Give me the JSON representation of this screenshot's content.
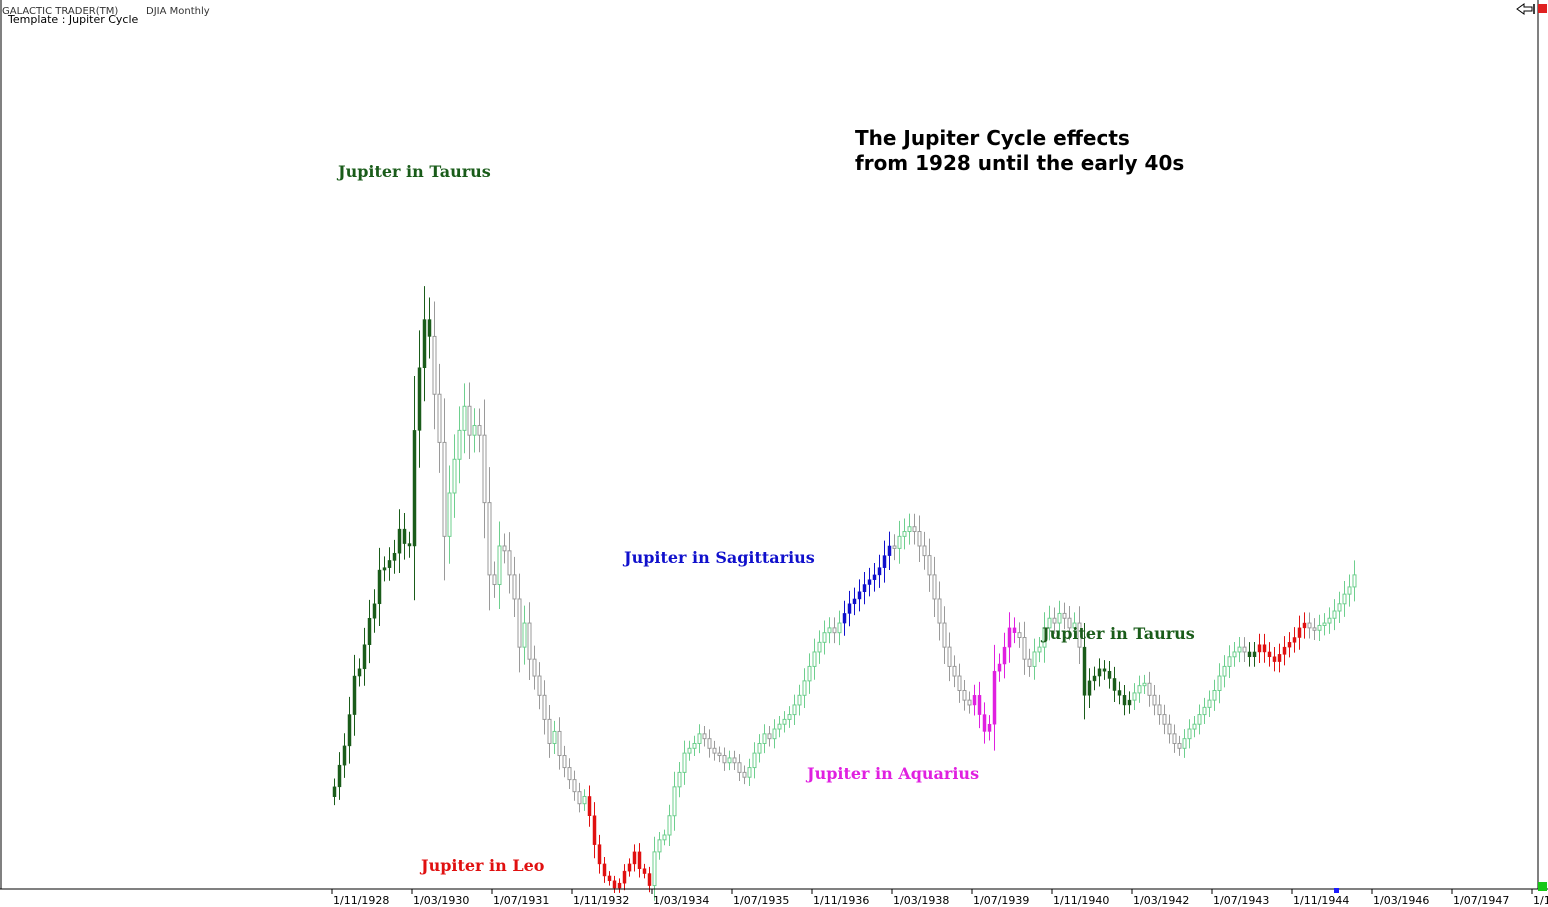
{
  "header": {
    "app_title": "GALACTIC TRADER(TM)",
    "symbol": "DJIA Monthly",
    "template": "Template : Jupiter Cycle"
  },
  "note": "The Jupiter Cycle effects from 1928 until the early 40s",
  "labels": [
    {
      "key": "taurus-1",
      "text": "Jupiter in Taurus",
      "color": "#1a5c1a"
    },
    {
      "key": "leo",
      "text": "Jupiter in Leo",
      "color": "#e01010"
    },
    {
      "key": "sagittarius",
      "text": "Jupiter in Sagittarius",
      "color": "#1010cc"
    },
    {
      "key": "aquarius",
      "text": "Jupiter in Aquarius",
      "color": "#e020e0"
    },
    {
      "key": "taurus-2",
      "text": "Jupiter in Taurus",
      "color": "#1a5c1a"
    }
  ],
  "icons": {
    "scroll": "scroll-end-icon",
    "close": "close-icon",
    "resize": "resize-grip-icon",
    "marker": "current-bar-marker-icon"
  },
  "chart_data": {
    "type": "candlestick",
    "x_ticks": [
      "1/11/1928",
      "1/03/1930",
      "1/07/1931",
      "1/11/1932",
      "1/03/1934",
      "1/07/1935",
      "1/11/1936",
      "1/03/1938",
      "1/07/1939",
      "1/11/1940",
      "1/03/1942",
      "1/07/1943",
      "1/11/1944",
      "1/03/1946",
      "1/07/1947",
      "1/1"
    ],
    "colors": {
      "up": "#6ecf8e",
      "down": "#9a9a9a",
      "taurus": "#1a5c1a",
      "leo": "#e01010",
      "sagittarius": "#1010cc",
      "aquarius": "#e020e0"
    },
    "segments": [
      {
        "start": "1928-01",
        "phase": "taurus",
        "closes": [
          82,
          91,
          99,
          112,
          128,
          131,
          141,
          152,
          158,
          172,
          173,
          176,
          179,
          189,
          183,
          182,
          230,
          256,
          276,
          269
        ]
      },
      {
        "start": "1929-09",
        "phase": "",
        "closes": [
          245,
          225,
          186,
          204,
          218,
          230,
          240,
          228,
          232,
          228,
          200,
          170,
          166,
          182,
          180,
          170,
          160,
          140,
          150,
          135,
          128,
          120,
          110,
          100,
          105,
          95,
          90,
          85,
          80,
          75,
          78
        ]
      },
      {
        "start": "1932-04",
        "phase": "leo",
        "closes": [
          70,
          58,
          50,
          45,
          43,
          40,
          42,
          47,
          50,
          55,
          48,
          46,
          41
        ]
      },
      {
        "start": "1933-05",
        "phase": "",
        "closes": [
          55,
          60,
          62,
          70,
          82,
          88,
          96,
          98,
          100,
          104,
          102,
          98,
          96,
          95,
          92,
          94,
          92,
          88,
          86,
          90,
          96,
          100,
          104,
          102,
          106,
          108,
          110,
          112,
          116,
          120,
          126,
          132,
          138,
          142,
          146,
          148,
          146,
          150
        ]
      },
      {
        "start": "1936-07",
        "phase": "sagittarius",
        "closes": [
          154,
          158,
          160,
          163,
          166,
          168,
          170,
          173,
          178,
          182
        ]
      },
      {
        "start": "1937-05",
        "phase": "",
        "closes": [
          181,
          186,
          188,
          190,
          188,
          182,
          178,
          170,
          160,
          150,
          140,
          132,
          128,
          122,
          118,
          116
        ]
      },
      {
        "start": "1938-09",
        "phase": "aquarius",
        "closes": [
          120,
          112,
          105,
          108,
          130,
          133,
          140,
          148,
          146
        ]
      },
      {
        "start": "1939-06",
        "phase": "",
        "closes": [
          144,
          135,
          132,
          138,
          140,
          148,
          152,
          150,
          154,
          152,
          148,
          150,
          140
        ]
      },
      {
        "start": "1940-07",
        "phase": "taurus",
        "closes": [
          120,
          126,
          128,
          131,
          130,
          127,
          122,
          120,
          116,
          118
        ]
      },
      {
        "start": "1941-05",
        "phase": "",
        "closes": [
          121,
          124,
          125,
          120,
          116,
          112,
          108,
          104,
          100,
          98,
          102,
          106,
          108,
          112,
          115,
          118,
          122,
          128,
          132,
          136,
          138,
          140,
          138
        ]
      },
      {
        "start": "1943-04",
        "phase": "taurus",
        "closes": [
          136,
          138
        ]
      },
      {
        "start": "1943-06",
        "phase": "leo",
        "closes": [
          141,
          138,
          136,
          134,
          137,
          140,
          142,
          144,
          148,
          150
        ]
      },
      {
        "start": "1944-04",
        "phase": "",
        "closes": [
          148,
          147,
          149,
          150,
          152,
          155,
          158,
          162,
          165,
          170
        ]
      }
    ]
  }
}
